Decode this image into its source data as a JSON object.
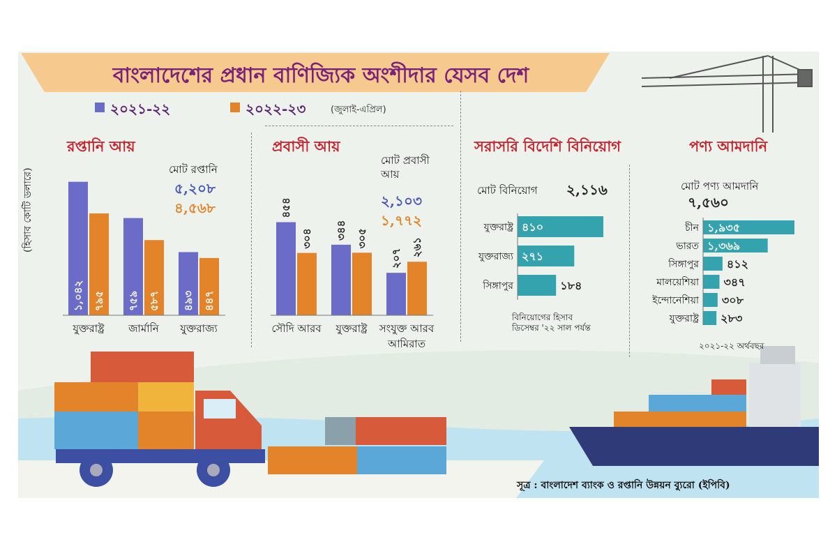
{
  "title": "বাংলাদেশের প্রধান বাণিজ্যিক অংশীদার যেসব দেশ",
  "legend": {
    "series_a": "২০২১-২২",
    "series_b": "২০২২-২৩",
    "series_b_note": "(জুলাই-এপ্রিল)",
    "color_a": "#6a6cc7",
    "color_b": "#e3842a"
  },
  "y_axis_label": "(হিসাব কোটি ডলারে)",
  "source": "সূত্র : বাংলাদেশ ব্যাংক ও রপ্তানি উন্নয়ন ব্যুরো (ইপিবি)",
  "chart_data": [
    {
      "type": "bar",
      "title": "রপ্তানি আয়",
      "total_label": "মোট রপ্তানি",
      "total_a": "৫,২০৮",
      "total_b": "৪,৫৬৮",
      "categories": [
        "যুক্তরাষ্ট্র",
        "জার্মানি",
        "যুক্তরাজ্য"
      ],
      "series": [
        {
          "name": "২০২১-২২",
          "values": [
            1042,
            759,
            493
          ],
          "labels": [
            "১,০৪২",
            "৭৫৯",
            "৪৯৩"
          ]
        },
        {
          "name": "২০২২-২৩",
          "values": [
            795,
            587,
            447
          ],
          "labels": [
            "৭৯৫",
            "৫৮৭",
            "৪৪৭"
          ]
        }
      ],
      "ylim": [
        0,
        1100
      ]
    },
    {
      "type": "bar",
      "title": "প্রবাসী আয়",
      "total_label": "মোট প্রবাসী আয়",
      "total_a": "২,১০৩",
      "total_b": "১,৭৭২",
      "categories": [
        "সৌদি আরব",
        "যুক্তরাষ্ট্র",
        "সংযুক্ত আরব আমিরাত"
      ],
      "series": [
        {
          "name": "২০২১-২২",
          "values": [
            454,
            344,
            207
          ],
          "labels": [
            "৪৫৪",
            "৩৪৪",
            "২০৭"
          ]
        },
        {
          "name": "২০২২-২৩",
          "values": [
            304,
            305,
            261
          ],
          "labels": [
            "৩০৪",
            "৩০৫",
            "২৬১"
          ]
        }
      ],
      "ylim": [
        0,
        500
      ]
    },
    {
      "type": "bar",
      "orientation": "horizontal",
      "title": "সরাসরি বিদেশি বিনিয়োগ",
      "total_label": "মোট বিনিয়োগ",
      "total": "২,১১৬",
      "categories": [
        "যুক্তরাষ্ট্র",
        "যুক্তরাজ্য",
        "সিঙ্গাপুর"
      ],
      "values": [
        410,
        271,
        184
      ],
      "labels": [
        "৪১০",
        "২৭১",
        "১৮৪"
      ],
      "note_line1": "বিনিয়োগের হিসাব",
      "note_line2": "ডিসেম্বর '২২ সাল পর্যন্ত",
      "color": "#35a3ad",
      "xlim": [
        0,
        420
      ]
    },
    {
      "type": "bar",
      "orientation": "horizontal",
      "title": "পণ্য আমদানি",
      "total_label": "মোট পণ্য আমদানি",
      "total": "৭,৫৬০",
      "categories": [
        "চীন",
        "ভারত",
        "সিঙ্গাপুর",
        "মালয়েশিয়া",
        "ইন্দোনেশিয়া",
        "যুক্তরাষ্ট্র"
      ],
      "values": [
        1935,
        1369,
        412,
        347,
        308,
        283
      ],
      "labels": [
        "১,৯৩৫",
        "১,৩৬৯",
        "৪১২",
        "৩৪৭",
        "৩০৮",
        "২৮৩"
      ],
      "note": "২০২১-২২ অর্থবছর",
      "color": "#35a3ad",
      "xlim": [
        0,
        1950
      ]
    }
  ]
}
